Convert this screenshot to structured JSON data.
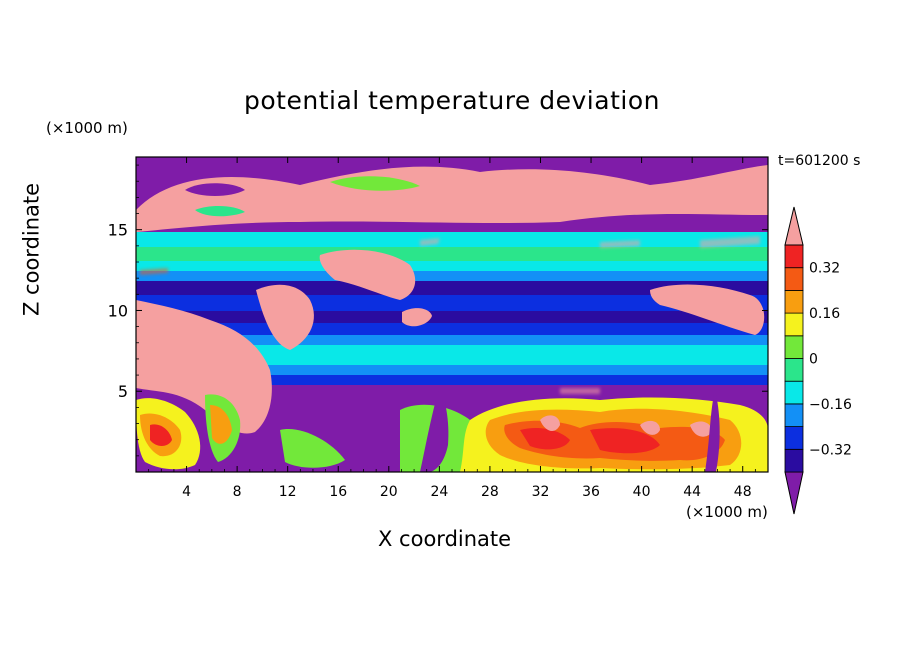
{
  "chart_data": {
    "type": "heatmap",
    "title": "potential temperature deviation",
    "xlabel": "X coordinate",
    "ylabel": "Z coordinate",
    "x_unit": "(×1000 m)",
    "y_unit": "(×1000 m)",
    "time_label": "t=601200 s",
    "xlim": [
      0,
      50
    ],
    "ylim": [
      0,
      19.5
    ],
    "x_ticks": [
      4,
      8,
      12,
      16,
      20,
      24,
      28,
      32,
      36,
      40,
      44,
      48
    ],
    "y_ticks": [
      5,
      10,
      15
    ],
    "colorbar": {
      "levels": [
        -0.4,
        -0.32,
        -0.24,
        -0.16,
        -0.08,
        0,
        0.08,
        0.16,
        0.24,
        0.32,
        0.4
      ],
      "tick_labels": [
        "0.32",
        "0.16",
        "0",
        "−0.16",
        "−0.32"
      ],
      "tick_values": [
        0.32,
        0.16,
        0,
        -0.16,
        -0.32
      ],
      "colors": [
        "#7F1CA8",
        "#2A0CA0",
        "#0C2FE0",
        "#1390F6",
        "#09E8E8",
        "#2BE58B",
        "#72E83A",
        "#F5F21E",
        "#F89E10",
        "#F45A14",
        "#EF2323",
        "#F5A0A0"
      ]
    },
    "fields": {
      "upper_band": "pink",
      "z_15_13": "cyan-green",
      "z_12_9": "dark blue",
      "z_8_6": "cyan",
      "lower_left_pink_plume": "x 0-14, z 3-11",
      "near_surface_warm_cells": "x 30-46, z 0-4",
      "top_band": "purple"
    }
  }
}
